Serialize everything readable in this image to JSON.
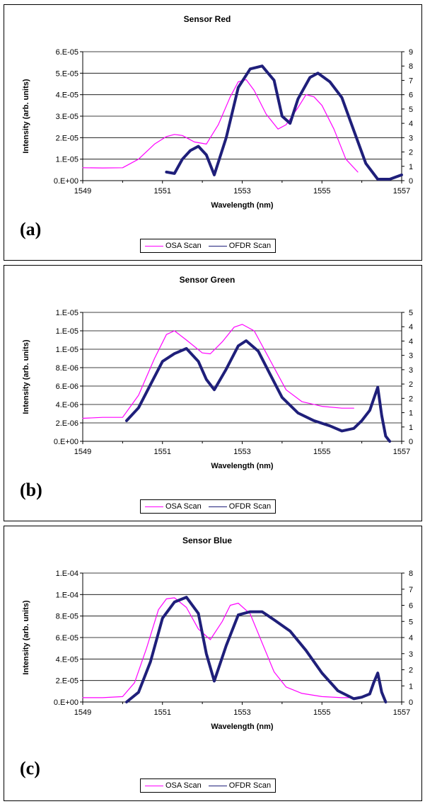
{
  "legend": {
    "osa_label": "OSA Scan",
    "ofdr_label": "OFDR Scan",
    "osa_color": "#ff00ff",
    "ofdr_color": "#1f1f7a"
  },
  "chart_data": [
    {
      "type": "line",
      "panel_letter": "(a)",
      "title": "Sensor Red",
      "xlabel": "Wavelength (nm)",
      "ylabel": "Intensity (arb. units)",
      "xlim": [
        1549,
        1557
      ],
      "x_ticks": [
        "1549",
        "1551",
        "1553",
        "1555",
        "1557"
      ],
      "ylim": [
        0,
        6e-05
      ],
      "y_ticks": [
        "0.E+00",
        "1.E-05",
        "2.E-05",
        "3.E-05",
        "4.E-05",
        "5.E-05",
        "6.E-05"
      ],
      "y2lim": [
        0,
        9
      ],
      "y2_ticks": [
        "0",
        "1",
        "2",
        "3",
        "4",
        "5",
        "6",
        "7",
        "8",
        "9"
      ],
      "grid": true,
      "legend_position": "bottom",
      "series": [
        {
          "name": "OSA Scan",
          "axis": "left",
          "x": [
            1549.0,
            1549.5,
            1550.0,
            1550.4,
            1550.8,
            1551.1,
            1551.3,
            1551.5,
            1551.8,
            1552.1,
            1552.4,
            1552.7,
            1552.9,
            1553.1,
            1553.3,
            1553.6,
            1553.9,
            1554.1,
            1554.4,
            1554.6,
            1554.8,
            1555.0,
            1555.3,
            1555.6,
            1555.9
          ],
          "y": [
            6e-06,
            5.9e-06,
            6e-06,
            1e-05,
            1.7e-05,
            2.05e-05,
            2.15e-05,
            2.1e-05,
            1.8e-05,
            1.7e-05,
            2.6e-05,
            3.9e-05,
            4.6e-05,
            4.7e-05,
            4.2e-05,
            3.1e-05,
            2.4e-05,
            2.6e-05,
            3.4e-05,
            4e-05,
            3.9e-05,
            3.5e-05,
            2.4e-05,
            1e-05,
            4e-06
          ]
        },
        {
          "name": "OFDR Scan",
          "axis": "right",
          "x": [
            1551.1,
            1551.3,
            1551.5,
            1551.7,
            1551.9,
            1552.1,
            1552.3,
            1552.6,
            1552.9,
            1553.2,
            1553.5,
            1553.8,
            1554.0,
            1554.2,
            1554.4,
            1554.7,
            1554.9,
            1555.2,
            1555.5,
            1555.8,
            1556.1,
            1556.4,
            1556.7,
            1557.0
          ],
          "y": [
            0.6,
            0.5,
            1.5,
            2.1,
            2.4,
            1.8,
            0.4,
            3.0,
            6.5,
            7.8,
            8.0,
            7.0,
            4.5,
            4.0,
            5.7,
            7.2,
            7.5,
            6.9,
            5.8,
            3.5,
            1.2,
            0.1,
            0.1,
            0.4
          ]
        }
      ]
    },
    {
      "type": "line",
      "panel_letter": "(b)",
      "title": "Sensor Green",
      "xlabel": "Wavelength (nm)",
      "ylabel": "Intensity (arb. units)",
      "xlim": [
        1549,
        1557
      ],
      "x_ticks": [
        "1549",
        "1551",
        "1553",
        "1555",
        "1557"
      ],
      "ylim": [
        0,
        1.4e-05
      ],
      "y_ticks": [
        "0.E+00",
        "2.E-06",
        "4.E-06",
        "6.E-06",
        "8.E-06",
        "1.E-05",
        "1.E-05",
        "1.E-05"
      ],
      "y2lim": [
        0,
        5
      ],
      "y2_ticks": [
        "0",
        "1",
        "1",
        "2",
        "2",
        "3",
        "3",
        "4",
        "4",
        "5"
      ],
      "grid": true,
      "legend_position": "bottom",
      "series": [
        {
          "name": "OSA Scan",
          "axis": "left",
          "x": [
            1549.0,
            1549.5,
            1550.0,
            1550.4,
            1550.8,
            1551.1,
            1551.3,
            1551.6,
            1552.0,
            1552.2,
            1552.5,
            1552.8,
            1553.0,
            1553.3,
            1553.7,
            1554.1,
            1554.5,
            1555.0,
            1555.5,
            1555.8
          ],
          "y": [
            2.5e-06,
            2.6e-06,
            2.6e-06,
            5e-06,
            9e-06,
            1.16e-05,
            1.2e-05,
            1.1e-05,
            9.6e-06,
            9.5e-06,
            1.08e-05,
            1.24e-05,
            1.27e-05,
            1.2e-05,
            8.8e-06,
            5.6e-06,
            4.3e-06,
            3.8e-06,
            3.6e-06,
            3.6e-06
          ]
        },
        {
          "name": "OFDR Scan",
          "axis": "right",
          "x": [
            1550.1,
            1550.4,
            1550.7,
            1551.0,
            1551.3,
            1551.6,
            1551.9,
            1552.1,
            1552.3,
            1552.6,
            1552.9,
            1553.1,
            1553.4,
            1553.7,
            1554.0,
            1554.4,
            1554.8,
            1555.2,
            1555.5,
            1555.8,
            1556.0,
            1556.2,
            1556.4,
            1556.5,
            1556.6,
            1556.7
          ],
          "y": [
            0.8,
            1.3,
            2.2,
            3.1,
            3.4,
            3.6,
            3.1,
            2.4,
            2.0,
            2.8,
            3.7,
            3.9,
            3.5,
            2.6,
            1.7,
            1.1,
            0.8,
            0.6,
            0.4,
            0.5,
            0.8,
            1.2,
            2.1,
            1.0,
            0.2,
            0.0
          ]
        }
      ]
    },
    {
      "type": "line",
      "panel_letter": "(c)",
      "title": "Sensor Blue",
      "xlabel": "Wavelength (nm)",
      "ylabel": "Intensity (arb. units)",
      "xlim": [
        1549,
        1557
      ],
      "x_ticks": [
        "1549",
        "1551",
        "1553",
        "1555",
        "1557"
      ],
      "ylim": [
        0,
        0.00012
      ],
      "y_ticks": [
        "0.E+00",
        "2.E-05",
        "4.E-05",
        "6.E-05",
        "8.E-05",
        "1.E-04",
        "1.E-04"
      ],
      "y2lim": [
        0,
        8
      ],
      "y2_ticks": [
        "0",
        "1",
        "2",
        "3",
        "4",
        "5",
        "6",
        "7",
        "8"
      ],
      "grid": true,
      "legend_position": "bottom",
      "series": [
        {
          "name": "OSA Scan",
          "axis": "left",
          "x": [
            1549.0,
            1549.5,
            1550.0,
            1550.3,
            1550.6,
            1550.9,
            1551.1,
            1551.3,
            1551.6,
            1551.9,
            1552.2,
            1552.5,
            1552.7,
            1552.9,
            1553.2,
            1553.5,
            1553.8,
            1554.1,
            1554.5,
            1555.0,
            1555.5,
            1555.9
          ],
          "y": [
            4e-06,
            4e-06,
            5e-06,
            1.8e-05,
            5e-05,
            8.6e-05,
            9.6e-05,
            9.7e-05,
            8.8e-05,
            6.8e-05,
            5.8e-05,
            7.5e-05,
            9e-05,
            9.2e-05,
            8.2e-05,
            5.5e-05,
            2.8e-05,
            1.4e-05,
            8e-06,
            5e-06,
            4e-06,
            4e-06
          ]
        },
        {
          "name": "OFDR Scan",
          "axis": "right",
          "x": [
            1550.1,
            1550.4,
            1550.7,
            1551.0,
            1551.3,
            1551.6,
            1551.9,
            1552.1,
            1552.3,
            1552.6,
            1552.9,
            1553.2,
            1553.5,
            1553.8,
            1554.2,
            1554.6,
            1555.0,
            1555.4,
            1555.8,
            1556.0,
            1556.2,
            1556.3,
            1556.4,
            1556.5,
            1556.6
          ],
          "y": [
            0.0,
            0.6,
            2.5,
            5.2,
            6.2,
            6.5,
            5.5,
            3.0,
            1.3,
            3.5,
            5.4,
            5.6,
            5.6,
            5.1,
            4.4,
            3.2,
            1.8,
            0.7,
            0.2,
            0.3,
            0.5,
            1.2,
            1.8,
            0.6,
            0.0
          ]
        }
      ]
    }
  ]
}
